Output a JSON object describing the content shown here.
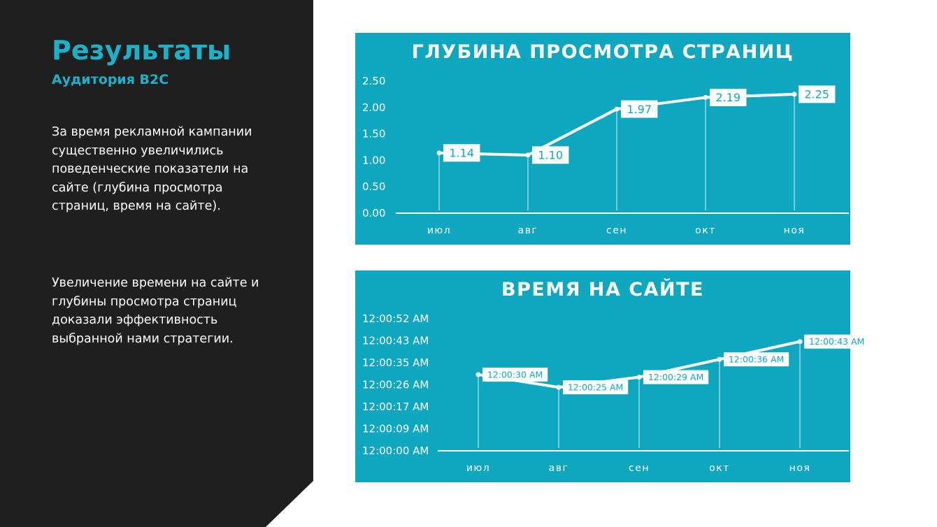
{
  "slide": {
    "title": "Результаты",
    "subtitle": "Аудитория B2C",
    "paragraph1": "За время рекламной кампании существенно увеличились поведенческие показатели на сайте (глубина просмотра страниц, время на сайте).",
    "paragraph2": "Увеличение времени на сайте и глубины просмотра страниц доказали эффективность выбранной нами стратегии."
  },
  "colors": {
    "left_panel": "#1f1f1f",
    "accent": "#1ab2c9",
    "chart_background": "#0fa7bf",
    "label_text": "#0fa7bf"
  },
  "chart_data": [
    {
      "type": "line",
      "title": "ГЛУБИНА ПРОСМОТРА СТРАНИЦ",
      "xlabel": "",
      "ylabel": "",
      "categories": [
        "июл",
        "авг",
        "сен",
        "окт",
        "ноя"
      ],
      "values": [
        1.14,
        1.1,
        1.97,
        2.19,
        2.25
      ],
      "data_labels": [
        "1.14",
        "1.10",
        "1.97",
        "2.19",
        "2.25"
      ],
      "y_ticks": [
        "0.00",
        "0.50",
        "1.00",
        "1.50",
        "2.00",
        "2.50"
      ],
      "ylim": [
        0,
        2.5
      ],
      "grid": false,
      "legend": "none"
    },
    {
      "type": "line",
      "title": "ВРЕМЯ НА САЙТЕ",
      "xlabel": "",
      "ylabel": "",
      "categories": [
        "июл",
        "авг",
        "сен",
        "окт",
        "ноя"
      ],
      "values": [
        "12:00:30 AM",
        "12:00:25 AM",
        "12:00:29 AM",
        "12:00:36 AM",
        "12:00:43 AM"
      ],
      "data_labels": [
        "12:00:30 AM",
        "12:00:25 AM",
        "12:00:29 AM",
        "12:00:36 AM",
        "12:00:43 AM"
      ],
      "y_ticks": [
        "12:00:00 AM",
        "12:00:09 AM",
        "12:00:17 AM",
        "12:00:26 AM",
        "12:00:35 AM",
        "12:00:43 AM",
        "12:00:52 AM"
      ],
      "ylim": [
        "12:00:00 AM",
        "12:00:52 AM"
      ],
      "grid": false,
      "legend": "none"
    }
  ]
}
